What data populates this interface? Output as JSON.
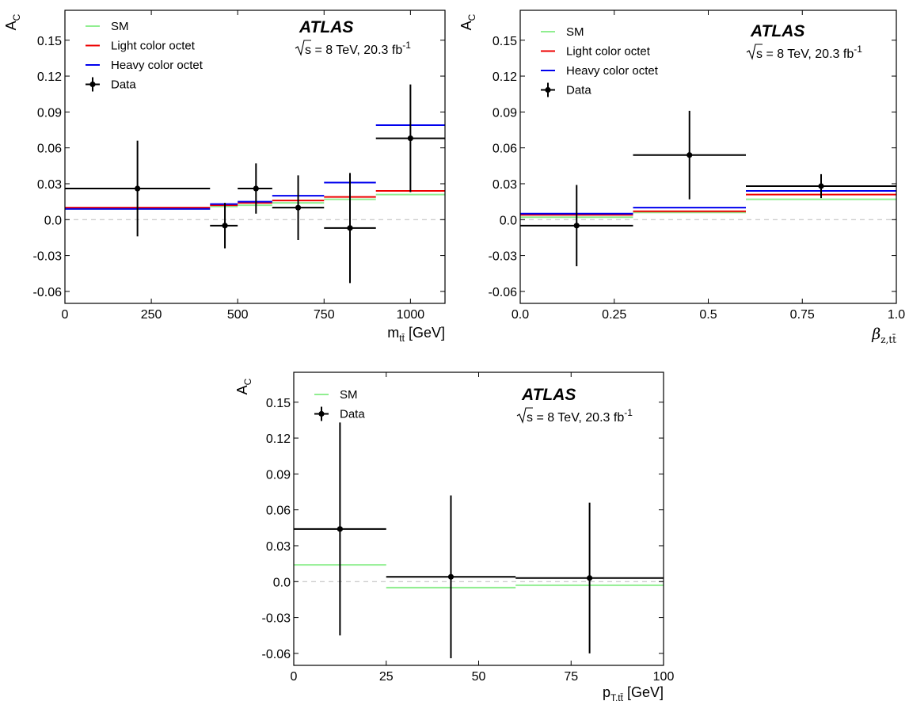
{
  "experiment": "ATLAS",
  "energy": {
    "sqrt_prefix": "s",
    "text": " = 8 TeV, 20.3 fb",
    "exponent": "-1"
  },
  "y_axis_label": {
    "main": "A",
    "sub": "C"
  },
  "colors": {
    "SM": "#90ee90",
    "Light color octet": "#ee0000",
    "Heavy color octet": "#0000ee",
    "Data": "#000000",
    "zero_line": "#bbbbbb"
  },
  "chart_data": [
    {
      "type": "line",
      "panel": "A_C vs m_tt",
      "xlabel": {
        "main": "m",
        "sub": "tt̄",
        "unit": " [GeV]"
      },
      "xlim": [
        0,
        1100
      ],
      "ylim": [
        -0.07,
        0.175
      ],
      "xticks": [
        0,
        250,
        500,
        750,
        1000
      ],
      "yticks": [
        -0.06,
        -0.03,
        0.0,
        0.03,
        0.06,
        0.09,
        0.12,
        0.15
      ],
      "ytick_labels": [
        "-0.06",
        "-0.03",
        "0.0",
        "0.03",
        "0.06",
        "0.09",
        "0.12",
        "0.15"
      ],
      "legend": [
        "SM",
        "Light color octet",
        "Heavy color octet",
        "Data"
      ],
      "legend_position": "top-left",
      "bins": [
        [
          0,
          420
        ],
        [
          420,
          500
        ],
        [
          500,
          600
        ],
        [
          600,
          750
        ],
        [
          750,
          900
        ],
        [
          900,
          1100
        ]
      ],
      "series": [
        {
          "name": "SM",
          "values": [
            0.009,
            0.011,
            0.012,
            0.014,
            0.017,
            0.021
          ]
        },
        {
          "name": "Light color octet",
          "values": [
            0.01,
            0.012,
            0.014,
            0.016,
            0.019,
            0.024
          ]
        },
        {
          "name": "Heavy color octet",
          "values": [
            0.009,
            0.013,
            0.015,
            0.02,
            0.031,
            0.079
          ]
        }
      ],
      "data": {
        "x": [
          210,
          463,
          553,
          675,
          825,
          1000
        ],
        "y": [
          0.026,
          -0.005,
          0.026,
          0.01,
          -0.007,
          0.068
        ],
        "yerr": [
          0.04,
          0.019,
          0.021,
          0.027,
          0.046,
          0.045
        ]
      }
    },
    {
      "type": "line",
      "panel": "A_C vs beta_z,tt",
      "xlabel": {
        "main": "β",
        "sub": "z,tt̄",
        "unit": ""
      },
      "xlim": [
        0.0,
        1.0
      ],
      "ylim": [
        -0.07,
        0.175
      ],
      "xticks": [
        0.0,
        0.25,
        0.5,
        0.75,
        1.0
      ],
      "xtick_labels": [
        "0.0",
        "0.25",
        "0.5",
        "0.75",
        "1.0"
      ],
      "yticks": [
        -0.06,
        -0.03,
        0.0,
        0.03,
        0.06,
        0.09,
        0.12,
        0.15
      ],
      "ytick_labels": [
        "-0.06",
        "-0.03",
        "0.0",
        "0.03",
        "0.06",
        "0.09",
        "0.12",
        "0.15"
      ],
      "legend": [
        "SM",
        "Light color octet",
        "Heavy color octet",
        "Data"
      ],
      "legend_position": "top-left",
      "bins": [
        [
          0.0,
          0.3
        ],
        [
          0.3,
          0.6
        ],
        [
          0.6,
          1.0
        ]
      ],
      "series": [
        {
          "name": "SM",
          "values": [
            0.002,
            0.006,
            0.017
          ]
        },
        {
          "name": "Light color octet",
          "values": [
            0.004,
            0.007,
            0.021
          ]
        },
        {
          "name": "Heavy color octet",
          "values": [
            0.005,
            0.01,
            0.024
          ]
        }
      ],
      "data": {
        "x": [
          0.15,
          0.45,
          0.8
        ],
        "y": [
          -0.005,
          0.054,
          0.028
        ],
        "yerr": [
          0.034,
          0.037,
          0.01
        ]
      }
    },
    {
      "type": "line",
      "panel": "A_C vs pT_tt",
      "xlabel": {
        "main": "p",
        "sub": "T,tt̄",
        "unit": " [GeV]"
      },
      "xlim": [
        0,
        100
      ],
      "ylim": [
        -0.07,
        0.175
      ],
      "xticks": [
        0,
        25,
        50,
        75,
        100
      ],
      "yticks": [
        -0.06,
        -0.03,
        0.0,
        0.03,
        0.06,
        0.09,
        0.12,
        0.15
      ],
      "ytick_labels": [
        "-0.06",
        "-0.03",
        "0.0",
        "0.03",
        "0.06",
        "0.09",
        "0.12",
        "0.15"
      ],
      "legend": [
        "SM",
        "Data"
      ],
      "legend_position": "top-left",
      "bins": [
        [
          0,
          25
        ],
        [
          25,
          60
        ],
        [
          60,
          100
        ]
      ],
      "series": [
        {
          "name": "SM",
          "values": [
            0.014,
            -0.005,
            -0.003
          ]
        }
      ],
      "data": {
        "x": [
          12.5,
          42.5,
          80
        ],
        "y": [
          0.044,
          0.004,
          0.003
        ],
        "yerr": [
          0.089,
          0.068,
          0.063
        ]
      }
    }
  ]
}
